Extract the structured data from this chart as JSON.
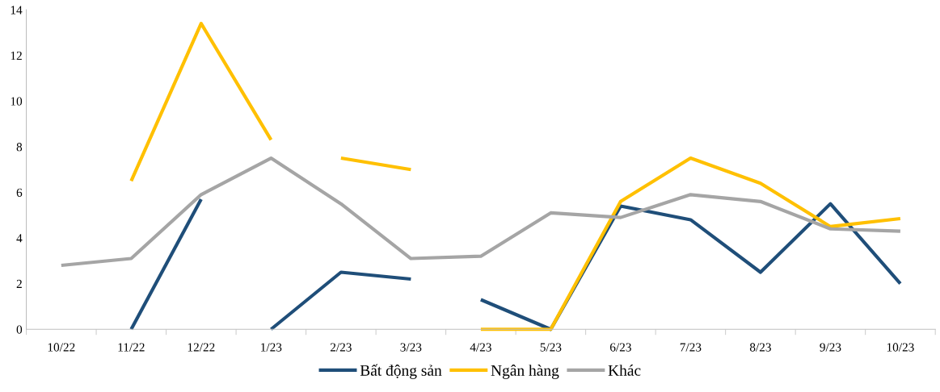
{
  "chart_data": {
    "type": "line",
    "categories": [
      "10/22",
      "11/22",
      "12/22",
      "1/23",
      "2/23",
      "3/23",
      "4/23",
      "5/23",
      "6/23",
      "7/23",
      "8/23",
      "9/23",
      "10/23"
    ],
    "series": [
      {
        "name": "Bất động sản",
        "color": "#1f4e79",
        "values": [
          null,
          0,
          5.7,
          null,
          null,
          null,
          null,
          null,
          null,
          null,
          null,
          null,
          null
        ]
      },
      {
        "color": "#1f4e79",
        "values": [
          null,
          null,
          null,
          0,
          2.5,
          2.2,
          null,
          null,
          null,
          null,
          null,
          null,
          null
        ]
      },
      {
        "color": "#1f4e79",
        "values": [
          null,
          null,
          null,
          null,
          null,
          null,
          1.3,
          0,
          5.4,
          4.8,
          2.5,
          5.5,
          2.0
        ]
      },
      {
        "name": "Ngân hàng",
        "color": "#ffc000",
        "values": [
          null,
          6.5,
          13.4,
          8.3,
          null,
          null,
          null,
          null,
          null,
          null,
          null,
          null,
          null
        ]
      },
      {
        "color": "#ffc000",
        "values": [
          null,
          null,
          null,
          null,
          7.5,
          7.0,
          null,
          null,
          null,
          null,
          null,
          null,
          null
        ]
      },
      {
        "color": "#ffc000",
        "values": [
          null,
          null,
          null,
          null,
          null,
          null,
          0,
          0,
          5.6,
          7.5,
          6.4,
          4.5,
          4.85
        ]
      },
      {
        "name": "Khác",
        "color": "#a5a5a5",
        "values": [
          2.8,
          3.1,
          5.9,
          7.5,
          5.5,
          3.1,
          3.2,
          5.1,
          4.9,
          5.9,
          5.6,
          4.4,
          4.3
        ]
      }
    ],
    "ylim": [
      0,
      14
    ],
    "yticks": [
      0,
      2,
      4,
      6,
      8,
      10,
      12,
      14
    ],
    "grid": false,
    "legend": "bottom",
    "marker": "none",
    "line_style": "solid"
  }
}
